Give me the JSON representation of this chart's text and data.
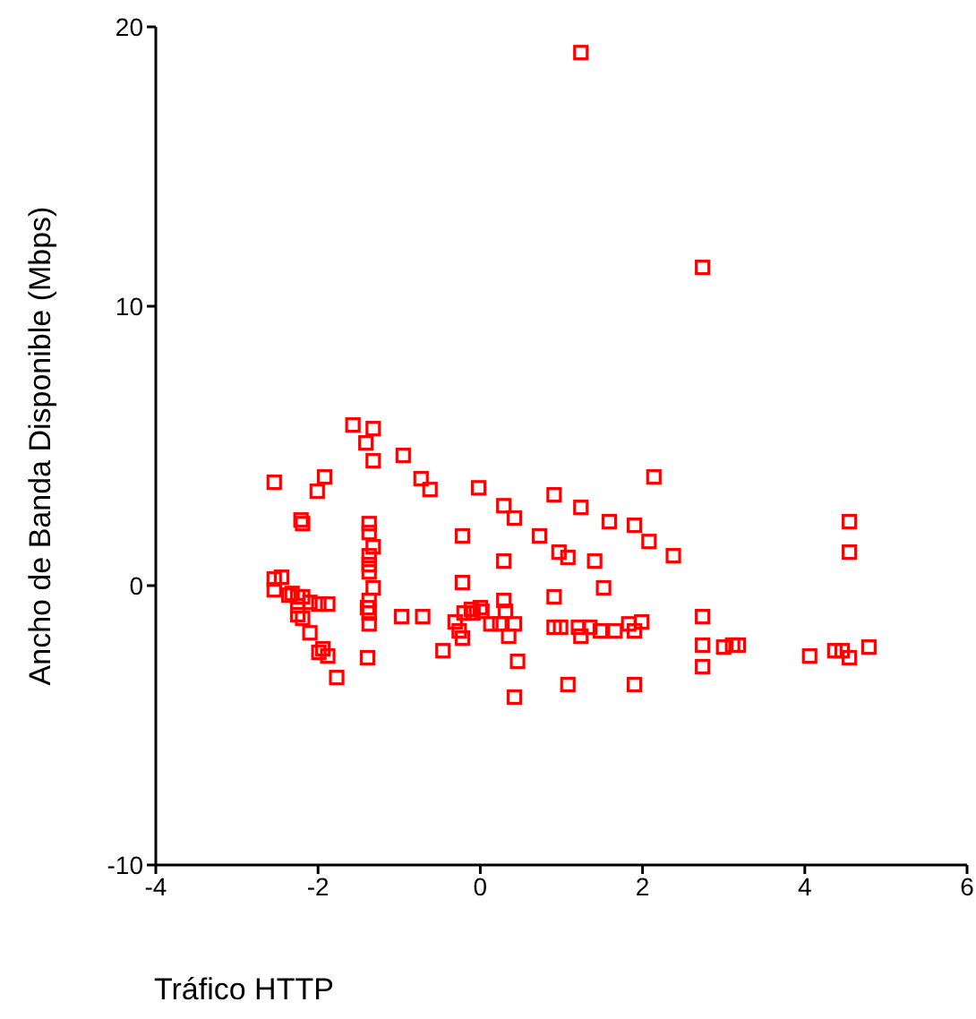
{
  "chart_data": {
    "type": "scatter",
    "xlabel": "Tráfico HTTP",
    "ylabel": "Ancho de Banda Disponible (Mbps)",
    "xlim": [
      -4,
      6
    ],
    "xticks": [
      -4,
      -2,
      0,
      2,
      4,
      6
    ],
    "ylim": [
      -10,
      20
    ],
    "yticks": [
      -10,
      0,
      10,
      20
    ],
    "grid": false,
    "marker": "square",
    "series": [
      {
        "color": "#ff0000",
        "x": [
          -1.57,
          -1.32,
          -1.41,
          -1.32,
          -0.95,
          -0.73,
          -0.62,
          -0.02,
          -2.54,
          -1.92,
          -2.01,
          -2.21,
          -2.19,
          -1.37,
          -1.37,
          -0.22,
          -1.32,
          -1.37,
          -1.37,
          -1.37,
          -0.22,
          -1.32,
          -2.54,
          -2.45,
          -2.54,
          -2.36,
          -2.32,
          -2.25,
          -2.19,
          -2.25,
          -2.25,
          -2.19,
          -2.1,
          -1.99,
          -1.88,
          -1.37,
          -1.39,
          -1.37,
          -1.37,
          -0.97,
          -0.71,
          -2.1,
          -1.99,
          -1.94,
          -1.88,
          -1.39,
          -1.77,
          -0.46,
          -0.31,
          -0.26,
          -0.22,
          -0.2,
          -0.11,
          0,
          0.29,
          0.42,
          0.73,
          0.91,
          1.24,
          1.59,
          1.9,
          2.08,
          2.38,
          2.14,
          0.29,
          0.97,
          1.08,
          1.41,
          1.52,
          0.91,
          0.29,
          0.31,
          -0.09,
          0.02,
          0.13,
          0.24,
          0.42,
          0.35,
          0.91,
          0.99,
          1.21,
          1.24,
          1.35,
          1.48,
          1.66,
          1.83,
          1.99,
          1.9,
          0.46,
          0.42,
          1.08,
          1.9,
          2.74,
          2.74,
          2.74,
          3.0,
          3.11,
          4.55,
          4.55,
          3.18,
          4.06,
          4.37,
          4.46,
          4.55,
          4.79,
          1.24,
          2.74
        ],
        "values": [
          5.75,
          5.62,
          5.11,
          4.47,
          4.66,
          3.83,
          3.44,
          3.5,
          3.7,
          3.89,
          3.38,
          2.35,
          2.22,
          2.22,
          1.9,
          1.78,
          1.39,
          1.07,
          0.75,
          0.49,
          0.11,
          -0.08,
          0.24,
          0.3,
          -0.15,
          -0.34,
          -0.28,
          -0.4,
          -0.4,
          -0.72,
          -1.04,
          -1.17,
          -0.6,
          -0.66,
          -0.66,
          -0.53,
          -0.79,
          -0.98,
          -1.37,
          -1.11,
          -1.11,
          -1.69,
          -2.39,
          -2.26,
          -2.52,
          -2.58,
          -3.29,
          -2.33,
          -1.3,
          -1.62,
          -1.88,
          -0.98,
          -0.85,
          -0.79,
          2.86,
          2.42,
          1.78,
          3.25,
          2.8,
          2.29,
          2.16,
          1.58,
          1.07,
          3.89,
          0.88,
          1.2,
          1.01,
          0.88,
          -0.08,
          -0.4,
          -0.53,
          -0.92,
          -0.98,
          -0.92,
          -1.37,
          -1.37,
          -1.37,
          -1.81,
          -1.49,
          -1.49,
          -1.49,
          -1.81,
          -1.49,
          -1.62,
          -1.62,
          -1.37,
          -1.3,
          -1.62,
          -2.71,
          -3.99,
          -3.54,
          -3.54,
          -1.11,
          -2.13,
          -2.9,
          -2.2,
          -2.13,
          2.29,
          1.2,
          -2.13,
          -2.52,
          -2.33,
          -2.33,
          -2.58,
          -2.2,
          19.08,
          11.39
        ]
      }
    ]
  }
}
